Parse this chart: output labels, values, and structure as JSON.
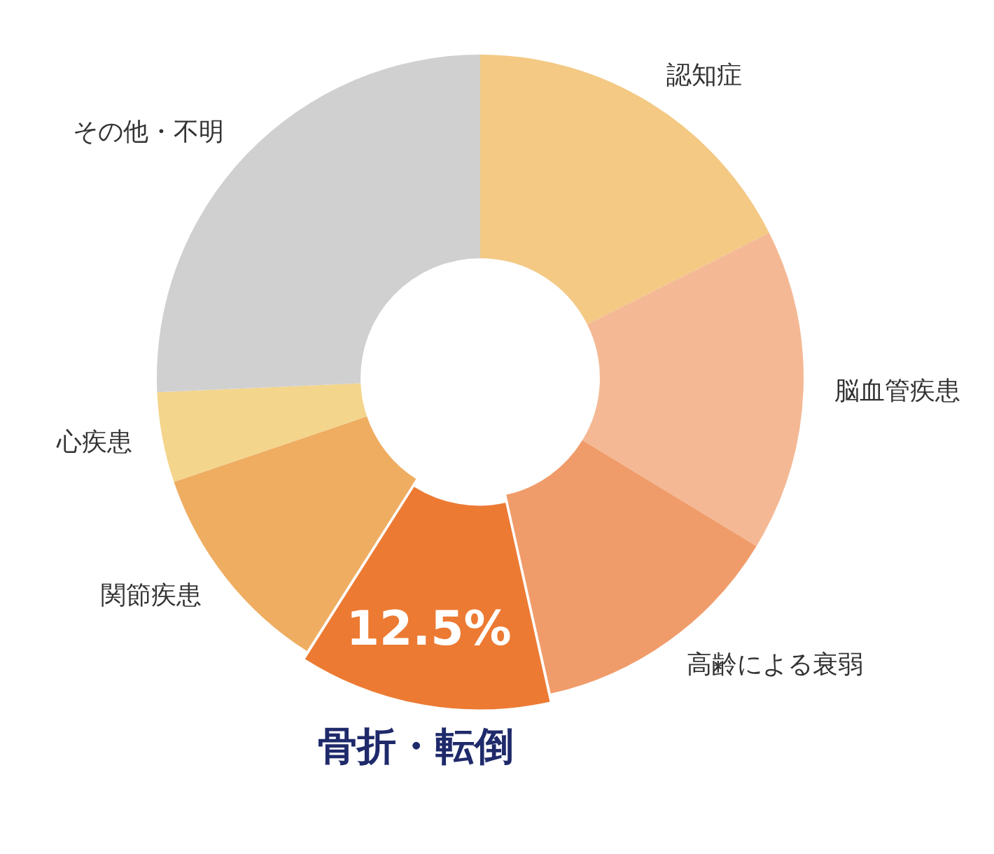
{
  "chart_data": {
    "type": "donut",
    "categories": [
      "認知症",
      "脳血管疾患",
      "高齢による衰弱",
      "骨折・転倒",
      "関節疾患",
      "心疾患",
      "その他・不明"
    ],
    "values": [
      17.6,
      16.1,
      12.8,
      12.5,
      10.8,
      4.5,
      25.7
    ],
    "colors": [
      "#f3c984",
      "#f4b994",
      "#f09c6a",
      "#ec7a33",
      "#efad62",
      "#f3d58c",
      "#d0d0d0"
    ],
    "value_labels": [
      null,
      null,
      null,
      "12.5%",
      null,
      null,
      null
    ],
    "legend": false
  }
}
